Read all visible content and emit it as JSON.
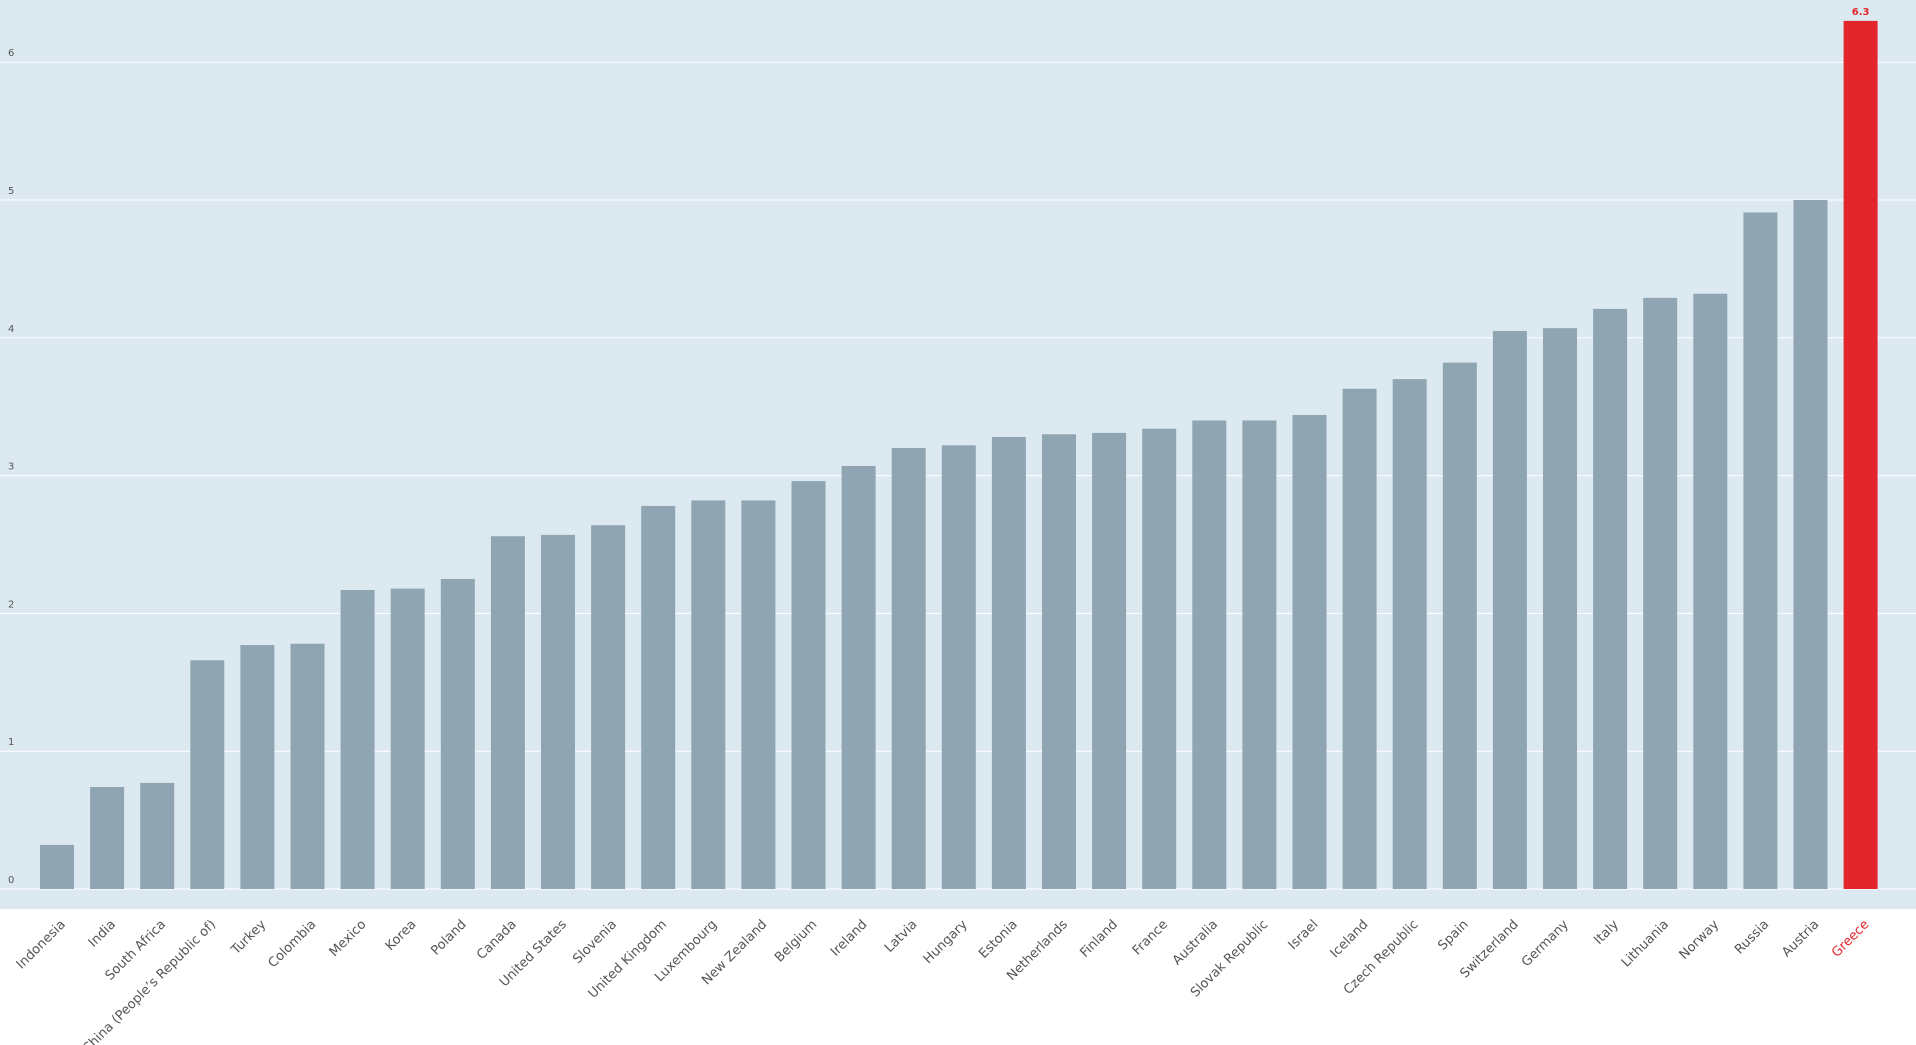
{
  "chart_data": {
    "type": "bar",
    "title": "",
    "xlabel": "",
    "ylabel": "",
    "ylim": [
      0,
      6.4
    ],
    "yticks": [
      0,
      1,
      2,
      3,
      4,
      5,
      6
    ],
    "grid": true,
    "categories": [
      "Indonesia",
      "India",
      "South Africa",
      "China (People’s Republic of)",
      "Turkey",
      "Colombia",
      "Mexico",
      "Korea",
      "Poland",
      "Canada",
      "United States",
      "Slovenia",
      "United Kingdom",
      "Luxembourg",
      "New Zealand",
      "Belgium",
      "Ireland",
      "Latvia",
      "Hungary",
      "Estonia",
      "Netherlands",
      "Finland",
      "France",
      "Australia",
      "Slovak Republic",
      "Israel",
      "Iceland",
      "Czech Republic",
      "Spain",
      "Switzerland",
      "Germany",
      "Italy",
      "Lithuania",
      "Norway",
      "Russia",
      "Austria",
      "Greece"
    ],
    "values": [
      0.32,
      0.74,
      0.77,
      1.66,
      1.77,
      1.78,
      2.17,
      2.18,
      2.25,
      2.56,
      2.57,
      2.64,
      2.78,
      2.82,
      2.82,
      2.96,
      3.07,
      3.2,
      3.22,
      3.28,
      3.3,
      3.31,
      3.34,
      3.4,
      3.4,
      3.44,
      3.63,
      3.7,
      3.82,
      4.05,
      4.07,
      4.21,
      4.29,
      4.32,
      4.91,
      5.0,
      6.3
    ],
    "highlight": {
      "category": "Greece",
      "value_label": "6.3"
    },
    "colors": {
      "bar": "#8fa5b2",
      "highlight": "#e3262c",
      "plot_background": "#dde9f0",
      "gridline": "#ffffff"
    }
  }
}
